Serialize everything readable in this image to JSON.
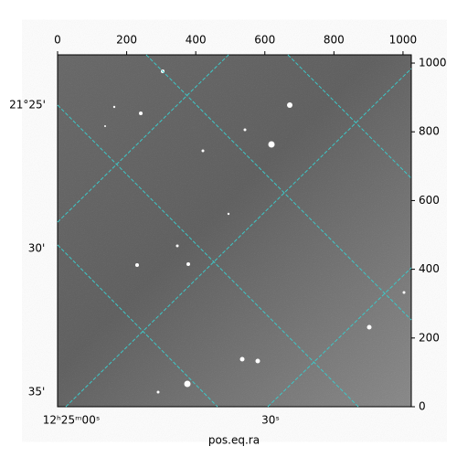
{
  "chart_data": {
    "type": "image",
    "xlabel": "pos.eq.ra",
    "xlim": [
      0,
      1024
    ],
    "xticks": [
      0,
      200,
      400,
      600,
      800,
      1000
    ],
    "ylim": [
      0,
      1024
    ],
    "yticks": [
      0,
      200,
      400,
      600,
      800,
      1000
    ],
    "dec_labels": [
      "21°25'",
      "30'",
      "35'"
    ],
    "ra_labels": [
      "12ʰ25ᵐ00ˢ",
      "30ˢ"
    ],
    "grid_color": "#3cc8c8"
  }
}
